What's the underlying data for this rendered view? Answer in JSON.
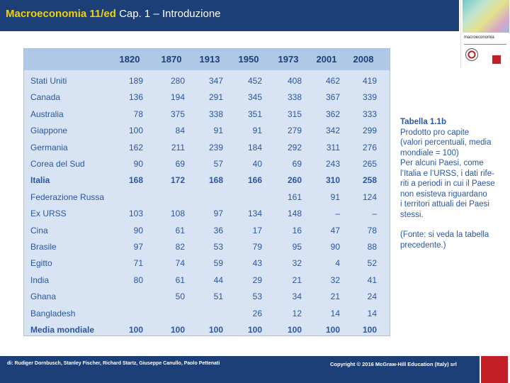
{
  "header": {
    "title": "Macroeconomia 11/ed",
    "subtitle": "Cap. 1 – Introduzione"
  },
  "cover": {
    "title": "macroeconomia",
    "publisher_logo": "Mc Graw Hill Education"
  },
  "table": {
    "years": [
      "1820",
      "1870",
      "1913",
      "1950",
      "1973",
      "2001",
      "2008"
    ],
    "rows": [
      {
        "country": "Stati Uniti",
        "values": [
          "189",
          "280",
          "347",
          "452",
          "408",
          "462",
          "419"
        ],
        "bold": false
      },
      {
        "country": "Canada",
        "values": [
          "136",
          "194",
          "291",
          "345",
          "338",
          "367",
          "339"
        ],
        "bold": false
      },
      {
        "country": "Australia",
        "values": [
          "78",
          "375",
          "338",
          "351",
          "315",
          "362",
          "333"
        ],
        "bold": false
      },
      {
        "country": "Giappone",
        "values": [
          "100",
          "84",
          "91",
          "91",
          "279",
          "342",
          "299"
        ],
        "bold": false
      },
      {
        "country": "Germania",
        "values": [
          "162",
          "211",
          "239",
          "184",
          "292",
          "311",
          "276"
        ],
        "bold": false
      },
      {
        "country": "Corea del Sud",
        "values": [
          "90",
          "69",
          "57",
          "40",
          "69",
          "243",
          "265"
        ],
        "bold": false
      },
      {
        "country": "Italia",
        "values": [
          "168",
          "172",
          "168",
          "166",
          "260",
          "310",
          "258"
        ],
        "bold": true
      },
      {
        "country": "Federazione Russa",
        "values": [
          "",
          "",
          "",
          "",
          "161",
          "91",
          "124"
        ],
        "bold": false
      },
      {
        "country": "Ex URSS",
        "values": [
          "103",
          "108",
          "97",
          "134",
          "148",
          "–",
          "–"
        ],
        "bold": false
      },
      {
        "country": "Cina",
        "values": [
          "90",
          "61",
          "36",
          "17",
          "16",
          "47",
          "78"
        ],
        "bold": false
      },
      {
        "country": "Brasile",
        "values": [
          "97",
          "82",
          "53",
          "79",
          "95",
          "90",
          "88"
        ],
        "bold": false
      },
      {
        "country": "Egitto",
        "values": [
          "71",
          "74",
          "59",
          "43",
          "32",
          "4",
          "52"
        ],
        "bold": false
      },
      {
        "country": "India",
        "values": [
          "80",
          "61",
          "44",
          "29",
          "21",
          "32",
          "41"
        ],
        "bold": false
      },
      {
        "country": "Ghana",
        "values": [
          "",
          "50",
          "51",
          "53",
          "34",
          "21",
          "24"
        ],
        "bold": false
      },
      {
        "country": "Bangladesh",
        "values": [
          "",
          "",
          "",
          "26",
          "12",
          "14",
          "14"
        ],
        "bold": false
      },
      {
        "country": "Media mondiale",
        "values": [
          "100",
          "100",
          "100",
          "100",
          "100",
          "100",
          "100"
        ],
        "bold": true
      }
    ]
  },
  "caption": {
    "title": "Tabella 1.1b",
    "line1": "Prodotto pro capite",
    "line2": "(valori percentuali, media",
    "line3": "mondiale = 100)",
    "body1": "Per alcuni Paesi, come",
    "body2": "l’Italia e l’URSS, i dati rife-",
    "body3": "riti a periodi in cui il Paese",
    "body4": "non esisteva riguardano",
    "body5": "i territori attuali dei Paesi",
    "body6": "stessi.",
    "source1": "(Fonte: si veda la tabella",
    "source2": "precedente.)"
  },
  "footer": {
    "authors": "di: Rudiger Dornbusch, Stanley Fischer, Richard Startz, Giuseppe Canullo, Paolo Pettenati",
    "copyright": "Copyright © 2016 McGraw-Hill Education (Italy) srl"
  },
  "colors": {
    "header_bg": "#1c3f78",
    "title_yellow": "#f2d200",
    "table_bg": "#d8e4f3",
    "table_head_bg": "#afc8e6",
    "text_blue": "#2a56a5",
    "brand_red": "#c21f27"
  }
}
